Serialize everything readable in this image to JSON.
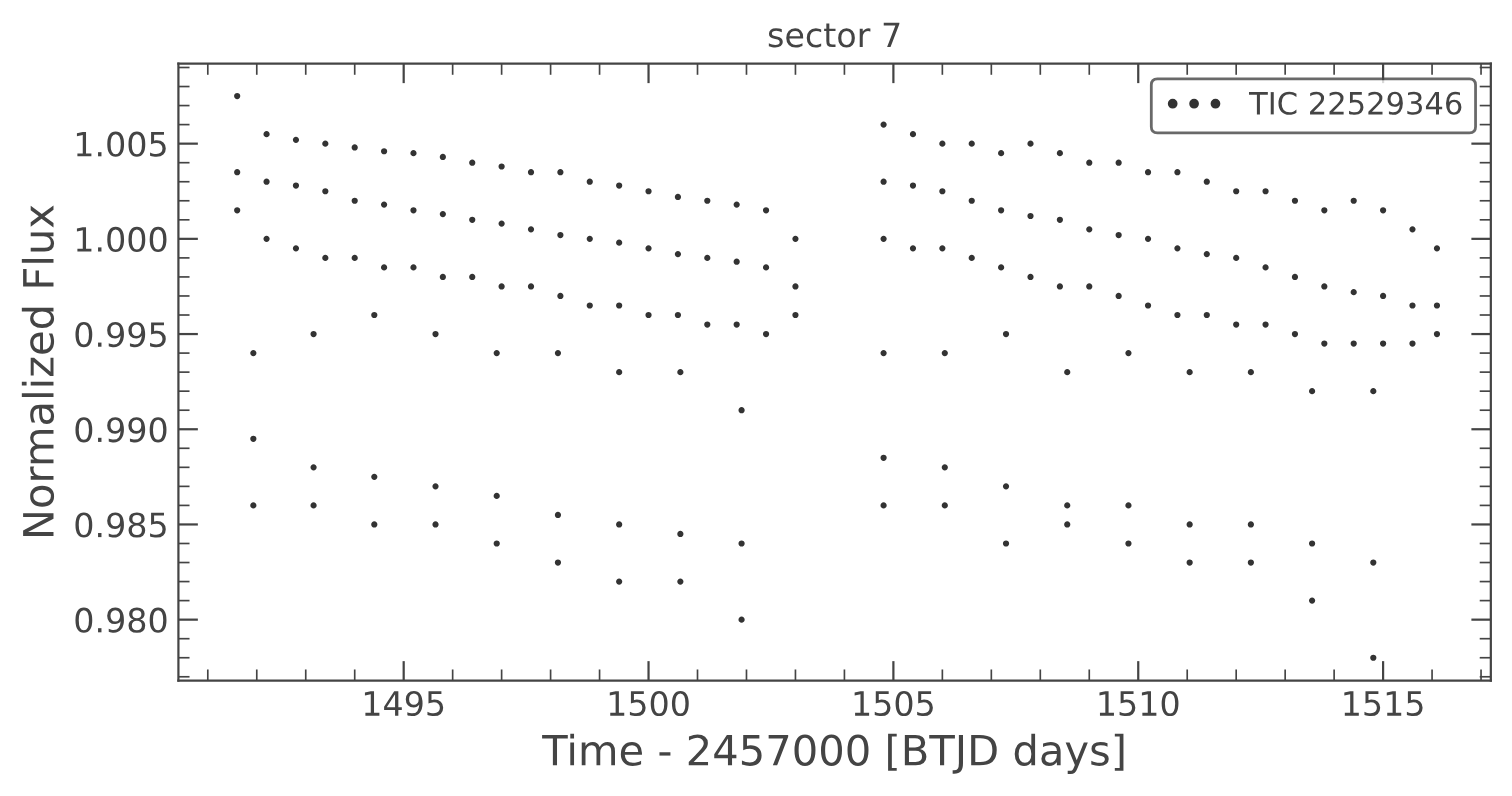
{
  "chart_data": {
    "type": "scatter",
    "title": "sector 7",
    "xlabel": "Time - 2457000 [BTJD days]",
    "ylabel": "Normalized Flux",
    "xlim": [
      1490.4,
      1517.2
    ],
    "ylim": [
      0.9768,
      1.0092
    ],
    "xticks": [
      1495,
      1500,
      1505,
      1510,
      1515
    ],
    "yticks": [
      {
        "value": 0.98,
        "label": "0.980"
      },
      {
        "value": 0.985,
        "label": "0.985"
      },
      {
        "value": 0.99,
        "label": "0.990"
      },
      {
        "value": 0.995,
        "label": "0.995"
      },
      {
        "value": 1.0,
        "label": "1.000"
      },
      {
        "value": 1.005,
        "label": "1.005"
      }
    ],
    "legend": "top right",
    "marker": "circle",
    "grid": false,
    "series": [
      {
        "name": "TIC 22529346",
        "color": "#333333",
        "x": [
          1491.6,
          1491.6,
          1491.6,
          1492.2,
          1492.2,
          1492.2,
          1492.8,
          1492.8,
          1492.8,
          1493.4,
          1493.4,
          1493.4,
          1494.0,
          1494.0,
          1494.0,
          1494.6,
          1494.6,
          1494.6,
          1495.2,
          1495.2,
          1495.2,
          1495.8,
          1495.8,
          1495.8,
          1496.4,
          1496.4,
          1496.4,
          1497.0,
          1497.0,
          1497.0,
          1497.6,
          1497.6,
          1497.6,
          1498.2,
          1498.2,
          1498.2,
          1498.8,
          1498.8,
          1498.8,
          1499.4,
          1499.4,
          1499.4,
          1500.0,
          1500.0,
          1500.0,
          1500.6,
          1500.6,
          1500.6,
          1501.2,
          1501.2,
          1501.2,
          1501.8,
          1501.8,
          1501.8,
          1502.4,
          1502.4,
          1502.4,
          1503.0,
          1503.0,
          1503.0,
          1491.93,
          1491.93,
          1491.93,
          1493.16,
          1493.16,
          1493.16,
          1494.4,
          1494.4,
          1494.4,
          1495.65,
          1495.65,
          1495.65,
          1496.9,
          1496.9,
          1496.9,
          1498.15,
          1498.15,
          1498.15,
          1499.4,
          1499.4,
          1499.4,
          1500.65,
          1500.65,
          1500.65,
          1501.9,
          1501.9,
          1501.9,
          1504.8,
          1504.8,
          1504.8,
          1506.05,
          1506.05,
          1506.05,
          1507.3,
          1507.3,
          1507.3,
          1508.55,
          1508.55,
          1508.55,
          1509.8,
          1509.8,
          1509.8,
          1511.05,
          1511.05,
          1511.05,
          1512.3,
          1512.3,
          1512.3,
          1513.55,
          1513.55,
          1513.55,
          1514.8,
          1514.8,
          1514.8,
          1504.8,
          1504.8,
          1504.8,
          1505.4,
          1505.4,
          1505.4,
          1506.0,
          1506.0,
          1506.0,
          1506.6,
          1506.6,
          1506.6,
          1507.2,
          1507.2,
          1507.2,
          1507.8,
          1507.8,
          1507.8,
          1508.4,
          1508.4,
          1508.4,
          1509.0,
          1509.0,
          1509.0,
          1509.6,
          1509.6,
          1509.6,
          1510.2,
          1510.2,
          1510.2,
          1510.8,
          1510.8,
          1510.8,
          1511.4,
          1511.4,
          1511.4,
          1512.0,
          1512.0,
          1512.0,
          1512.6,
          1512.6,
          1512.6,
          1513.2,
          1513.2,
          1513.2,
          1513.8,
          1513.8,
          1513.8,
          1514.4,
          1514.4,
          1514.4,
          1515.0,
          1515.0,
          1515.0,
          1515.6,
          1515.6,
          1515.6,
          1516.1,
          1516.1,
          1516.1
        ],
        "values": [
          1.0075,
          1.0035,
          1.0015,
          1.0055,
          1.003,
          1.0,
          1.0052,
          1.0028,
          0.9995,
          1.005,
          1.0025,
          0.999,
          1.0048,
          1.002,
          0.999,
          1.0046,
          1.0018,
          0.9985,
          1.0045,
          1.0015,
          0.9985,
          1.0043,
          1.0013,
          0.998,
          1.004,
          1.001,
          0.998,
          1.0038,
          1.0008,
          0.9975,
          1.0035,
          1.0005,
          0.9975,
          1.0035,
          1.0002,
          0.997,
          1.003,
          1.0,
          0.9965,
          1.0028,
          0.9998,
          0.9965,
          1.0025,
          0.9995,
          0.996,
          1.0022,
          0.9992,
          0.996,
          1.002,
          0.999,
          0.9955,
          1.0018,
          0.9988,
          0.9955,
          1.0015,
          0.9985,
          0.995,
          1.0,
          0.9975,
          0.996,
          0.994,
          0.9895,
          0.986,
          0.995,
          0.988,
          0.986,
          0.996,
          0.9875,
          0.985,
          0.995,
          0.987,
          0.985,
          0.994,
          0.9865,
          0.984,
          0.994,
          0.9855,
          0.983,
          0.993,
          0.985,
          0.982,
          0.993,
          0.9845,
          0.982,
          0.991,
          0.984,
          0.98,
          0.994,
          0.9885,
          0.986,
          0.994,
          0.988,
          0.986,
          0.995,
          0.987,
          0.984,
          0.993,
          0.986,
          0.985,
          0.994,
          0.986,
          0.984,
          0.993,
          0.985,
          0.983,
          0.993,
          0.985,
          0.983,
          0.992,
          0.984,
          0.981,
          0.992,
          0.983,
          0.978,
          1.006,
          1.003,
          1.0,
          1.0055,
          1.0028,
          0.9995,
          1.005,
          1.0025,
          0.9995,
          1.005,
          1.002,
          0.999,
          1.0045,
          1.0015,
          0.9985,
          1.005,
          1.0012,
          0.998,
          1.0045,
          1.001,
          0.9975,
          1.004,
          1.0005,
          0.9975,
          1.004,
          1.0002,
          0.997,
          1.0035,
          1.0,
          0.9965,
          1.0035,
          0.9995,
          0.996,
          1.003,
          0.9992,
          0.996,
          1.0025,
          0.999,
          0.9955,
          1.0025,
          0.9985,
          0.9955,
          1.002,
          0.998,
          0.995,
          1.0015,
          0.9975,
          0.9945,
          1.002,
          0.9972,
          0.9945,
          1.0015,
          0.997,
          0.9945,
          1.0005,
          0.9965,
          0.9945,
          0.9995,
          0.9965,
          0.995
        ]
      }
    ]
  }
}
